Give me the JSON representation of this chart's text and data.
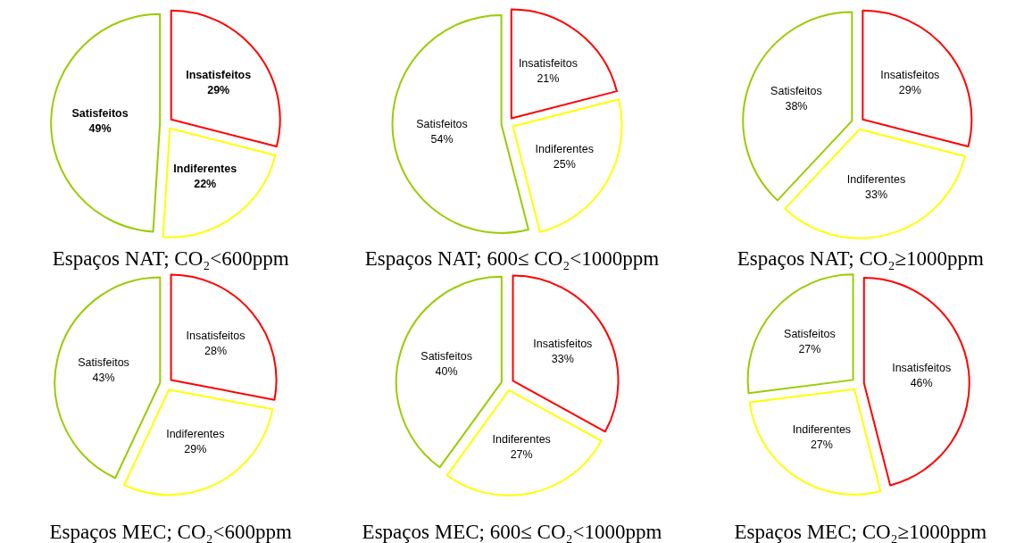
{
  "chart_data": [
    {
      "type": "pie",
      "title": "Espaços NAT; CO₂<600ppm",
      "categories": [
        "Insatisfeitos",
        "Indiferentes",
        "Satisfeitos"
      ],
      "values": [
        29,
        22,
        49
      ],
      "colors": [
        "#ff0000",
        "#ffff00",
        "#99cc00"
      ],
      "value_labels": [
        "29%",
        "22%",
        "49%"
      ]
    },
    {
      "type": "pie",
      "title": "Espaços NAT; 600≤ CO₂<1000ppm",
      "categories": [
        "Insatisfeitos",
        "Indiferentes",
        "Satisfeitos"
      ],
      "values": [
        21,
        25,
        54
      ],
      "colors": [
        "#ff0000",
        "#ffff00",
        "#99cc00"
      ],
      "value_labels": [
        "21%",
        "25%",
        "54%"
      ]
    },
    {
      "type": "pie",
      "title": "Espaços NAT; CO₂≥1000ppm",
      "categories": [
        "Insatisfeitos",
        "Indiferentes",
        "Satisfeitos"
      ],
      "values": [
        29,
        33,
        38
      ],
      "colors": [
        "#ff0000",
        "#ffff00",
        "#99cc00"
      ],
      "value_labels": [
        "29%",
        "33%",
        "38%"
      ]
    },
    {
      "type": "pie",
      "title": "Espaços MEC; CO₂<600ppm",
      "categories": [
        "Insatisfeitos",
        "Indiferentes",
        "Satisfeitos"
      ],
      "values": [
        28,
        29,
        43
      ],
      "colors": [
        "#ff0000",
        "#ffff00",
        "#99cc00"
      ],
      "value_labels": [
        "28%",
        "29%",
        "43%"
      ]
    },
    {
      "type": "pie",
      "title": "Espaços MEC; 600≤ CO₂<1000ppm",
      "categories": [
        "Insatisfeitos",
        "Indiferentes",
        "Satisfeitos"
      ],
      "values": [
        33,
        27,
        40
      ],
      "colors": [
        "#ff0000",
        "#ffff00",
        "#99cc00"
      ],
      "value_labels": [
        "33%",
        "27%",
        "40%"
      ]
    },
    {
      "type": "pie",
      "title": "Espaços MEC; CO₂≥1000ppm",
      "categories": [
        "Insatisfeitos",
        "Indiferentes",
        "Satisfeitos"
      ],
      "values": [
        46,
        27,
        27
      ],
      "colors": [
        "#ff0000",
        "#ffff00",
        "#99cc00"
      ],
      "value_labels": [
        "46%",
        "27%",
        "27%"
      ]
    }
  ]
}
